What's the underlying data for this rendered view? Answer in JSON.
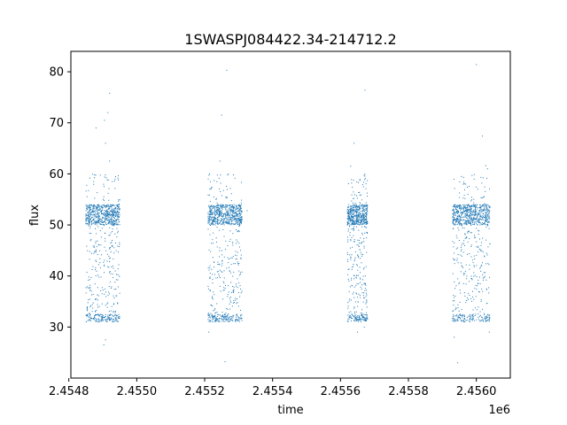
{
  "chart_data": {
    "type": "scatter",
    "title": "1SWASPJ084422.34-214712.2",
    "xlabel": "time",
    "ylabel": "flux",
    "x_offset_label": "1e6",
    "xlim": [
      2454806,
      2456100
    ],
    "ylim": [
      20,
      84
    ],
    "x_ticks": [
      2454800,
      2455000,
      2455200,
      2455400,
      2455600,
      2455800,
      2456000
    ],
    "x_tick_labels": [
      "2.4548",
      "2.4550",
      "2.4552",
      "2.4554",
      "2.4556",
      "2.4558",
      "2.4560"
    ],
    "y_ticks": [
      30,
      40,
      50,
      60,
      70,
      80
    ],
    "y_tick_labels": [
      "30",
      "40",
      "50",
      "60",
      "70",
      "80"
    ],
    "grid": false,
    "point_color": "#1f77b4",
    "series": [
      {
        "segments": [
          {
            "x_start": 2454850,
            "x_end": 2454950,
            "upper_band": [
              50,
              54
            ],
            "lower_min": 31,
            "density": 900
          },
          {
            "x_start": 2455210,
            "x_end": 2455310,
            "upper_band": [
              50,
              54
            ],
            "lower_min": 31,
            "density": 900
          },
          {
            "x_start": 2455620,
            "x_end": 2455680,
            "upper_band": [
              50,
              54
            ],
            "lower_min": 31,
            "density": 700
          },
          {
            "x_start": 2455930,
            "x_end": 2456040,
            "upper_band": [
              50,
              54
            ],
            "lower_min": 31,
            "density": 900
          }
        ],
        "outliers": [
          {
            "x": 2454920,
            "y": 75.8
          },
          {
            "x": 2454915,
            "y": 72
          },
          {
            "x": 2454905,
            "y": 70.5
          },
          {
            "x": 2454880,
            "y": 69
          },
          {
            "x": 2454908,
            "y": 66
          },
          {
            "x": 2454920,
            "y": 62.5
          },
          {
            "x": 2454903,
            "y": 26.5
          },
          {
            "x": 2454908,
            "y": 27.5
          },
          {
            "x": 2455265,
            "y": 80.3
          },
          {
            "x": 2455250,
            "y": 71.5
          },
          {
            "x": 2455245,
            "y": 62.5
          },
          {
            "x": 2455270,
            "y": 60
          },
          {
            "x": 2455260,
            "y": 23.2
          },
          {
            "x": 2455212,
            "y": 29
          },
          {
            "x": 2455325,
            "y": 52.8
          },
          {
            "x": 2455672,
            "y": 76.4
          },
          {
            "x": 2455640,
            "y": 66
          },
          {
            "x": 2455630,
            "y": 61.5
          },
          {
            "x": 2455650,
            "y": 29
          },
          {
            "x": 2455670,
            "y": 30
          },
          {
            "x": 2456000,
            "y": 81.4
          },
          {
            "x": 2456018,
            "y": 67.4
          },
          {
            "x": 2456028,
            "y": 61.6
          },
          {
            "x": 2456033,
            "y": 61
          },
          {
            "x": 2455945,
            "y": 23
          },
          {
            "x": 2455935,
            "y": 28
          },
          {
            "x": 2456038,
            "y": 29
          }
        ]
      }
    ]
  }
}
